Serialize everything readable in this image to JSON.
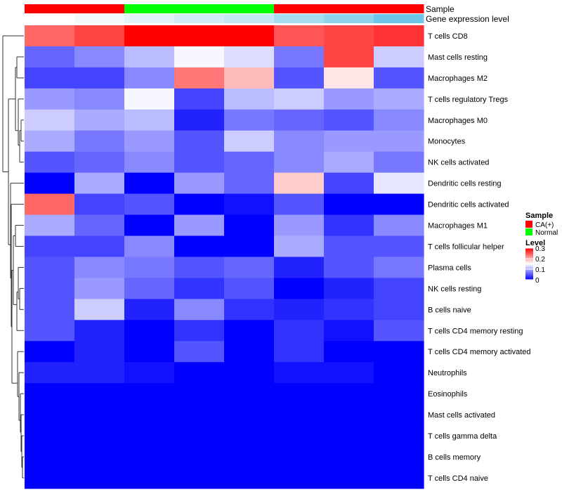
{
  "chart_data": {
    "type": "heatmap",
    "columns": 8,
    "rows": [
      "T cells CD8",
      "Mast cells resting",
      "Macrophages M2",
      "T cells regulatory  Tregs",
      "Macrophages M0",
      "Monocytes",
      "NK cells activated",
      "Dendritic cells resting",
      "Dendritic cells activated",
      "Macrophages M1",
      "T cells follicular helper",
      "Plasma cells",
      "NK cells resting",
      "B cells naive",
      "T cells CD4 memory resting",
      "T cells CD4 memory activated",
      "Neutrophils",
      "Eosinophils",
      "Mast cells activated",
      "T cells gamma delta",
      "B cells memory",
      "T cells CD4 naive"
    ],
    "values": [
      [
        0.24,
        0.26,
        0.3,
        0.3,
        0.3,
        0.25,
        0.26,
        0.27
      ],
      [
        0.06,
        0.08,
        0.11,
        0.145,
        0.13,
        0.07,
        0.26,
        0.12
      ],
      [
        0.04,
        0.04,
        0.08,
        0.23,
        0.19,
        0.05,
        0.165,
        0.05
      ],
      [
        0.09,
        0.08,
        0.145,
        0.04,
        0.11,
        0.12,
        0.09,
        0.1
      ],
      [
        0.12,
        0.1,
        0.11,
        0.02,
        0.07,
        0.06,
        0.05,
        0.08
      ],
      [
        0.1,
        0.07,
        0.09,
        0.05,
        0.12,
        0.08,
        0.09,
        0.09
      ],
      [
        0.05,
        0.06,
        0.08,
        0.05,
        0.06,
        0.08,
        0.1,
        0.07
      ],
      [
        0.0,
        0.1,
        0.0,
        0.09,
        0.06,
        0.18,
        0.04,
        0.135
      ],
      [
        0.24,
        0.04,
        0.05,
        0.0,
        0.01,
        0.05,
        0.0,
        0.0
      ],
      [
        0.1,
        0.06,
        0.0,
        0.09,
        0.0,
        0.09,
        0.03,
        0.08
      ],
      [
        0.04,
        0.04,
        0.08,
        0.0,
        0.0,
        0.1,
        0.05,
        0.05
      ],
      [
        0.05,
        0.08,
        0.07,
        0.05,
        0.06,
        0.02,
        0.05,
        0.07
      ],
      [
        0.05,
        0.09,
        0.06,
        0.03,
        0.05,
        0.0,
        0.02,
        0.04
      ],
      [
        0.05,
        0.12,
        0.02,
        0.08,
        0.03,
        0.02,
        0.03,
        0.04
      ],
      [
        0.05,
        0.02,
        0.0,
        0.03,
        0.0,
        0.03,
        0.01,
        0.05
      ],
      [
        0.0,
        0.02,
        0.0,
        0.05,
        0.0,
        0.03,
        0.0,
        0.0
      ],
      [
        0.02,
        0.02,
        0.01,
        0.0,
        0.0,
        0.01,
        0.01,
        0.0
      ],
      [
        0.0,
        0.0,
        0.0,
        0.0,
        0.0,
        0.0,
        0.0,
        0.0
      ],
      [
        0.0,
        0.0,
        0.0,
        0.0,
        0.0,
        0.0,
        0.0,
        0.0
      ],
      [
        0.0,
        0.0,
        0.0,
        0.0,
        0.0,
        0.0,
        0.0,
        0.0
      ],
      [
        0.0,
        0.0,
        0.0,
        0.0,
        0.0,
        0.0,
        0.0,
        0.0
      ],
      [
        0.0,
        0.0,
        0.0,
        0.0,
        0.0,
        0.0,
        0.0,
        0.0
      ]
    ],
    "annotations": {
      "sample_label": "Sample",
      "gene_label": "Gene expression level",
      "sample": [
        "CA(+)",
        "CA(+)",
        "Normal",
        "Normal",
        "Normal",
        "CA(+)",
        "CA(+)",
        "CA(+)"
      ],
      "sample_colors": {
        "CA(+)": "#ff0000",
        "Normal": "#00ff00"
      },
      "gene_expression_colors": [
        "#ffffff",
        "#f4f9fc",
        "#e3f3fa",
        "#d3edf7",
        "#c3e7f4",
        "#a6dcf0",
        "#8fd3ec",
        "#6ec6e8"
      ]
    },
    "color_scale": {
      "low": "#0000ff",
      "mid": "#ffffff",
      "high": "#ff0000",
      "min": 0,
      "mid_value": 0.15,
      "max": 0.3
    },
    "legend": {
      "position": "right",
      "sample_title": "Sample",
      "sample_items": [
        "CA(+)",
        "Normal"
      ],
      "level_title": "Level",
      "level_ticks": [
        "0.3",
        "0.2",
        "0.1",
        "0"
      ],
      "level_tick_values": [
        0.3,
        0.2,
        0.1,
        0
      ]
    },
    "row_dendrogram": true
  }
}
